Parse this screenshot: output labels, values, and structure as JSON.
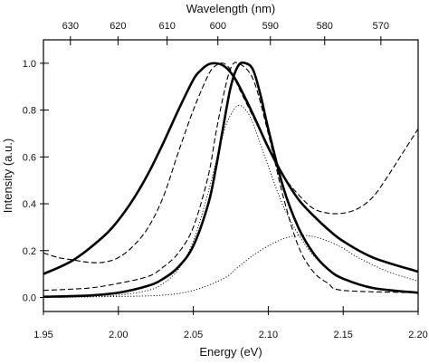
{
  "chart_data": {
    "type": "line",
    "xlabel": "Energy (eV)",
    "ylabel": "Intensity (a.u.)",
    "x2label": "Wavelength (nm)",
    "xlim": [
      1.95,
      2.2
    ],
    "ylim": [
      -0.06,
      1.1
    ],
    "x_ticks": [
      1.95,
      2.0,
      2.05,
      2.1,
      2.15,
      2.2
    ],
    "x_tick_labels": [
      "1.95",
      "2.00",
      "2.05",
      "2.10",
      "2.15",
      "2.20"
    ],
    "y_ticks": [
      0.0,
      0.2,
      0.4,
      0.6,
      0.8,
      1.0
    ],
    "y_tick_labels": [
      "0.0",
      "0.2",
      "0.4",
      "0.6",
      "0.8",
      "1.0"
    ],
    "x2_ticks": [
      630,
      620,
      610,
      600,
      590,
      580,
      570
    ],
    "x2_tick_labels": [
      "630",
      "620",
      "610",
      "600",
      "590",
      "580",
      "570"
    ],
    "grid": false,
    "series": [
      {
        "style": "solid-thick",
        "x": [
          1.95,
          1.97,
          1.99,
          2.0,
          2.01,
          2.02,
          2.03,
          2.04,
          2.05,
          2.055,
          2.06,
          2.065,
          2.07,
          2.075,
          2.08,
          2.09,
          2.1,
          2.11,
          2.12,
          2.13,
          2.14,
          2.15,
          2.17,
          2.2
        ],
        "y": [
          0.1,
          0.16,
          0.26,
          0.33,
          0.42,
          0.53,
          0.66,
          0.8,
          0.93,
          0.97,
          0.995,
          1.0,
          0.99,
          0.96,
          0.91,
          0.78,
          0.64,
          0.52,
          0.42,
          0.35,
          0.29,
          0.24,
          0.17,
          0.11
        ]
      },
      {
        "style": "solid-thick",
        "x": [
          1.95,
          1.98,
          2.0,
          2.02,
          2.03,
          2.04,
          2.05,
          2.06,
          2.065,
          2.07,
          2.075,
          2.08,
          2.085,
          2.09,
          2.095,
          2.1,
          2.11,
          2.12,
          2.13,
          2.14,
          2.15,
          2.17,
          2.2
        ],
        "y": [
          0.003,
          0.008,
          0.02,
          0.05,
          0.08,
          0.13,
          0.22,
          0.4,
          0.55,
          0.73,
          0.9,
          0.99,
          1.0,
          0.97,
          0.86,
          0.72,
          0.47,
          0.3,
          0.19,
          0.12,
          0.08,
          0.04,
          0.02
        ]
      },
      {
        "style": "dashed",
        "x": [
          1.95,
          1.96,
          1.97,
          1.98,
          1.99,
          2.0,
          2.01,
          2.02,
          2.03,
          2.04,
          2.05,
          2.06,
          2.065,
          2.07,
          2.075,
          2.08,
          2.09,
          2.1,
          2.11,
          2.12,
          2.13,
          2.14,
          2.15,
          2.16,
          2.17,
          2.18,
          2.19,
          2.2
        ],
        "y": [
          0.19,
          0.17,
          0.16,
          0.15,
          0.15,
          0.17,
          0.22,
          0.3,
          0.43,
          0.62,
          0.8,
          0.95,
          0.99,
          1.0,
          0.97,
          0.9,
          0.77,
          0.64,
          0.52,
          0.44,
          0.38,
          0.36,
          0.36,
          0.38,
          0.43,
          0.52,
          0.62,
          0.72
        ]
      },
      {
        "style": "dashed",
        "x": [
          1.95,
          1.98,
          2.0,
          2.02,
          2.03,
          2.04,
          2.05,
          2.06,
          2.065,
          2.07,
          2.075,
          2.08,
          2.09,
          2.1,
          2.11,
          2.12,
          2.13,
          2.14,
          2.15,
          2.2
        ],
        "y": [
          0.03,
          0.04,
          0.06,
          0.09,
          0.13,
          0.19,
          0.3,
          0.52,
          0.7,
          0.86,
          0.98,
          1.0,
          0.93,
          0.7,
          0.43,
          0.22,
          0.11,
          0.06,
          0.03,
          0.02
        ]
      },
      {
        "style": "dotted",
        "x": [
          1.95,
          1.98,
          2.0,
          2.02,
          2.03,
          2.04,
          2.05,
          2.06,
          2.07,
          2.075,
          2.08,
          2.085,
          2.09,
          2.1,
          2.11,
          2.12,
          2.13,
          2.14,
          2.15,
          2.17,
          2.2
        ],
        "y": [
          0.0,
          0.003,
          0.01,
          0.03,
          0.06,
          0.12,
          0.24,
          0.45,
          0.7,
          0.78,
          0.82,
          0.8,
          0.74,
          0.56,
          0.39,
          0.27,
          0.18,
          0.12,
          0.08,
          0.04,
          0.02
        ]
      },
      {
        "style": "dotted",
        "x": [
          1.95,
          2.0,
          2.03,
          2.05,
          2.07,
          2.08,
          2.09,
          2.1,
          2.11,
          2.12,
          2.13,
          2.14,
          2.15,
          2.16,
          2.18,
          2.2
        ],
        "y": [
          0.0,
          0.004,
          0.01,
          0.03,
          0.08,
          0.13,
          0.18,
          0.22,
          0.25,
          0.265,
          0.26,
          0.24,
          0.21,
          0.17,
          0.11,
          0.07
        ]
      }
    ]
  }
}
